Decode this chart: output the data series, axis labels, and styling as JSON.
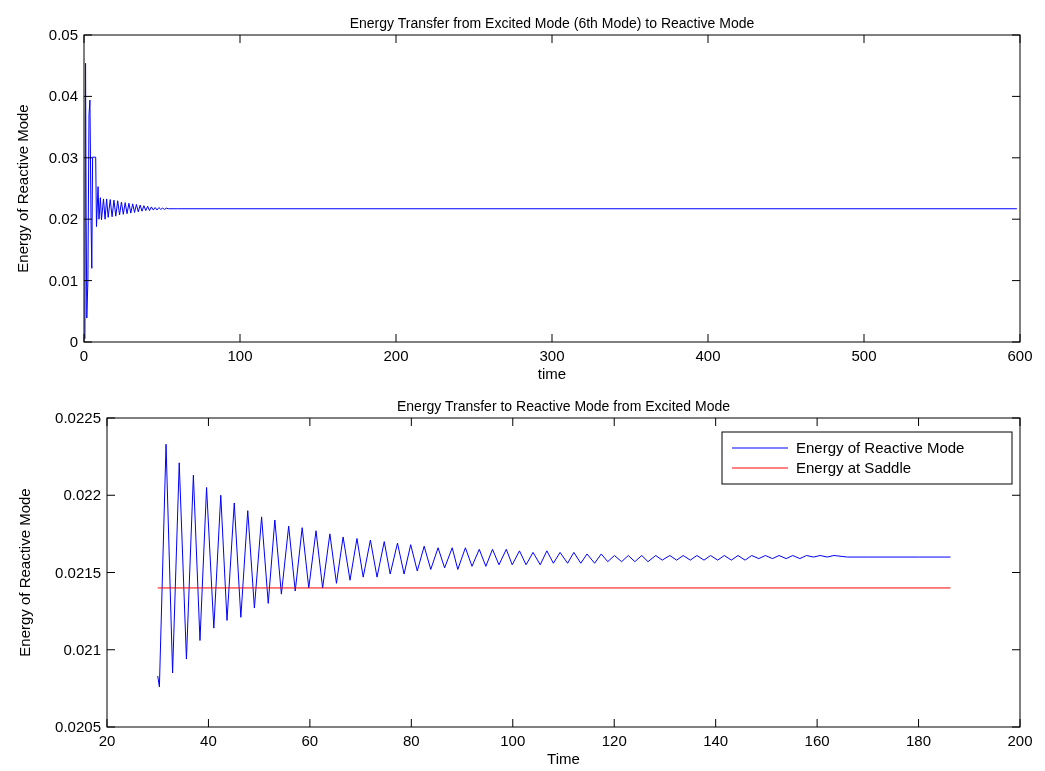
{
  "chart_data": [
    {
      "type": "line",
      "title": "Energy Transfer from Excited Mode (6th Mode) to Reactive Mode",
      "xlabel": "time",
      "ylabel": "Energy of Reactive Mode",
      "xlim": [
        0,
        600
      ],
      "xticks": [
        0,
        100,
        200,
        300,
        400,
        500,
        600
      ],
      "ylim": [
        0,
        0.05
      ],
      "yticks": [
        0,
        0.01,
        0.02,
        0.03,
        0.04,
        0.05
      ],
      "grid": false,
      "legend": false,
      "series": [
        {
          "color": "#0000ff",
          "x": [
            0.6,
            1.0,
            1.4,
            1.8,
            2.5,
            3.2,
            3.8,
            4.5,
            5.0,
            5.5,
            7.5,
            8.0,
            9.0,
            9.6,
            10.5,
            11.2,
            12.5,
            13.5,
            14.5,
            15.5,
            16.8,
            18,
            19.2,
            20.4,
            21.6,
            22.8,
            24,
            25.2,
            26.4,
            27.6,
            28.8,
            30,
            31.2,
            32.4,
            33.6,
            34.8,
            36,
            37.2,
            38.4,
            39.6,
            40.8,
            42,
            43.2,
            44.4,
            45.6,
            46.8,
            48,
            49.2,
            50.4,
            51.6,
            52.8,
            54,
            60,
            598
          ],
          "values": [
            0.0005,
            0.0454,
            0.02,
            0.0039,
            0.01,
            0.037,
            0.0394,
            0.02,
            0.012,
            0.0301,
            0.0301,
            0.0188,
            0.0253,
            0.02,
            0.0235,
            0.0199,
            0.0233,
            0.02,
            0.0233,
            0.0203,
            0.0232,
            0.0204,
            0.0231,
            0.0205,
            0.023,
            0.0207,
            0.0228,
            0.0208,
            0.0227,
            0.0209,
            0.0226,
            0.021,
            0.0225,
            0.0211,
            0.0224,
            0.0212,
            0.0223,
            0.0213,
            0.0222,
            0.0214,
            0.0221,
            0.0214,
            0.022,
            0.0215,
            0.0219,
            0.0215,
            0.0219,
            0.0216,
            0.0218,
            0.0216,
            0.0218,
            0.0217,
            0.0217,
            0.0217
          ]
        }
      ]
    },
    {
      "type": "line",
      "title": "Energy Transfer to Reactive Mode from Excited Mode",
      "xlabel": "Time",
      "ylabel": "Energy of Reactive Mode",
      "xlim": [
        20,
        200
      ],
      "xticks": [
        20,
        40,
        60,
        80,
        100,
        120,
        140,
        160,
        180,
        200
      ],
      "ylim": [
        0.0205,
        0.0225
      ],
      "yticks": [
        0.0205,
        0.021,
        0.0215,
        0.022,
        0.0225
      ],
      "grid": false,
      "legend": "top right",
      "series": [
        {
          "name": "Energy of Reactive Mode",
          "color": "#0000ff",
          "x": [
            30.0,
            30.33,
            31.64,
            32.93,
            34.24,
            35.66,
            37.03,
            38.33,
            39.63,
            41.06,
            42.43,
            43.66,
            45.09,
            46.39,
            47.75,
            49.06,
            50.48,
            51.79,
            53.09,
            54.38,
            55.82,
            57.11,
            58.48,
            59.78,
            61.21,
            62.51,
            63.94,
            65.24,
            66.55,
            67.91,
            69.28,
            70.51,
            71.93,
            73.24,
            74.66,
            75.83,
            77.27,
            78.57,
            79.87,
            81.17,
            82.53,
            83.83,
            85.27,
            86.56,
            88.06,
            89.16,
            90.66,
            91.96,
            93.39,
            94.69,
            96.0,
            97.28,
            98.72,
            99.89,
            101.32,
            102.62,
            103.99,
            105.41,
            106.72,
            108.01,
            109.32,
            110.81,
            112.04,
            113.41,
            114.64,
            116.14,
            117.44,
            118.73,
            120.04,
            121.46,
            122.77,
            124.07,
            125.43,
            126.67,
            128.17,
            129.46,
            130.96,
            132.3,
            133.6,
            135.0,
            136.3,
            137.7,
            139.0,
            140.4,
            141.7,
            143.1,
            144.4,
            145.8,
            147.1,
            148.5,
            149.8,
            151.2,
            152.5,
            153.9,
            155.2,
            156.6,
            157.9,
            159.3,
            160.6,
            162.0,
            163.3,
            166,
            170,
            175,
            180,
            186.3
          ],
          "values": [
            0.02083,
            0.02076,
            0.02233,
            0.02085,
            0.02221,
            0.02094,
            0.02213,
            0.02106,
            0.02205,
            0.02114,
            0.022,
            0.02119,
            0.02195,
            0.02121,
            0.0219,
            0.02127,
            0.02186,
            0.0213,
            0.02184,
            0.02136,
            0.0218,
            0.02138,
            0.02179,
            0.0214,
            0.02177,
            0.0214,
            0.02175,
            0.02143,
            0.02173,
            0.02145,
            0.02172,
            0.02147,
            0.02171,
            0.02147,
            0.0217,
            0.02149,
            0.02169,
            0.02149,
            0.02168,
            0.02151,
            0.02167,
            0.02152,
            0.02166,
            0.02153,
            0.02166,
            0.02152,
            0.02166,
            0.02154,
            0.02165,
            0.02154,
            0.02165,
            0.02155,
            0.02165,
            0.02155,
            0.02164,
            0.02155,
            0.02163,
            0.02155,
            0.02164,
            0.02156,
            0.02163,
            0.02156,
            0.02163,
            0.02156,
            0.02162,
            0.02156,
            0.02162,
            0.02157,
            0.02161,
            0.02157,
            0.02161,
            0.02157,
            0.02161,
            0.02157,
            0.02161,
            0.02158,
            0.02161,
            0.02158,
            0.02161,
            0.02158,
            0.02161,
            0.02158,
            0.02161,
            0.02158,
            0.02161,
            0.02158,
            0.02161,
            0.02158,
            0.02161,
            0.02159,
            0.02161,
            0.02159,
            0.02161,
            0.02159,
            0.02161,
            0.02159,
            0.02161,
            0.0216,
            0.02161,
            0.0216,
            0.02161,
            0.0216,
            0.0216,
            0.0216,
            0.0216,
            0.0216
          ]
        },
        {
          "name": "Energy at Saddle",
          "color": "#ff0000",
          "x": [
            30,
            186.3
          ],
          "values": [
            0.0214,
            0.0214
          ]
        }
      ]
    }
  ]
}
